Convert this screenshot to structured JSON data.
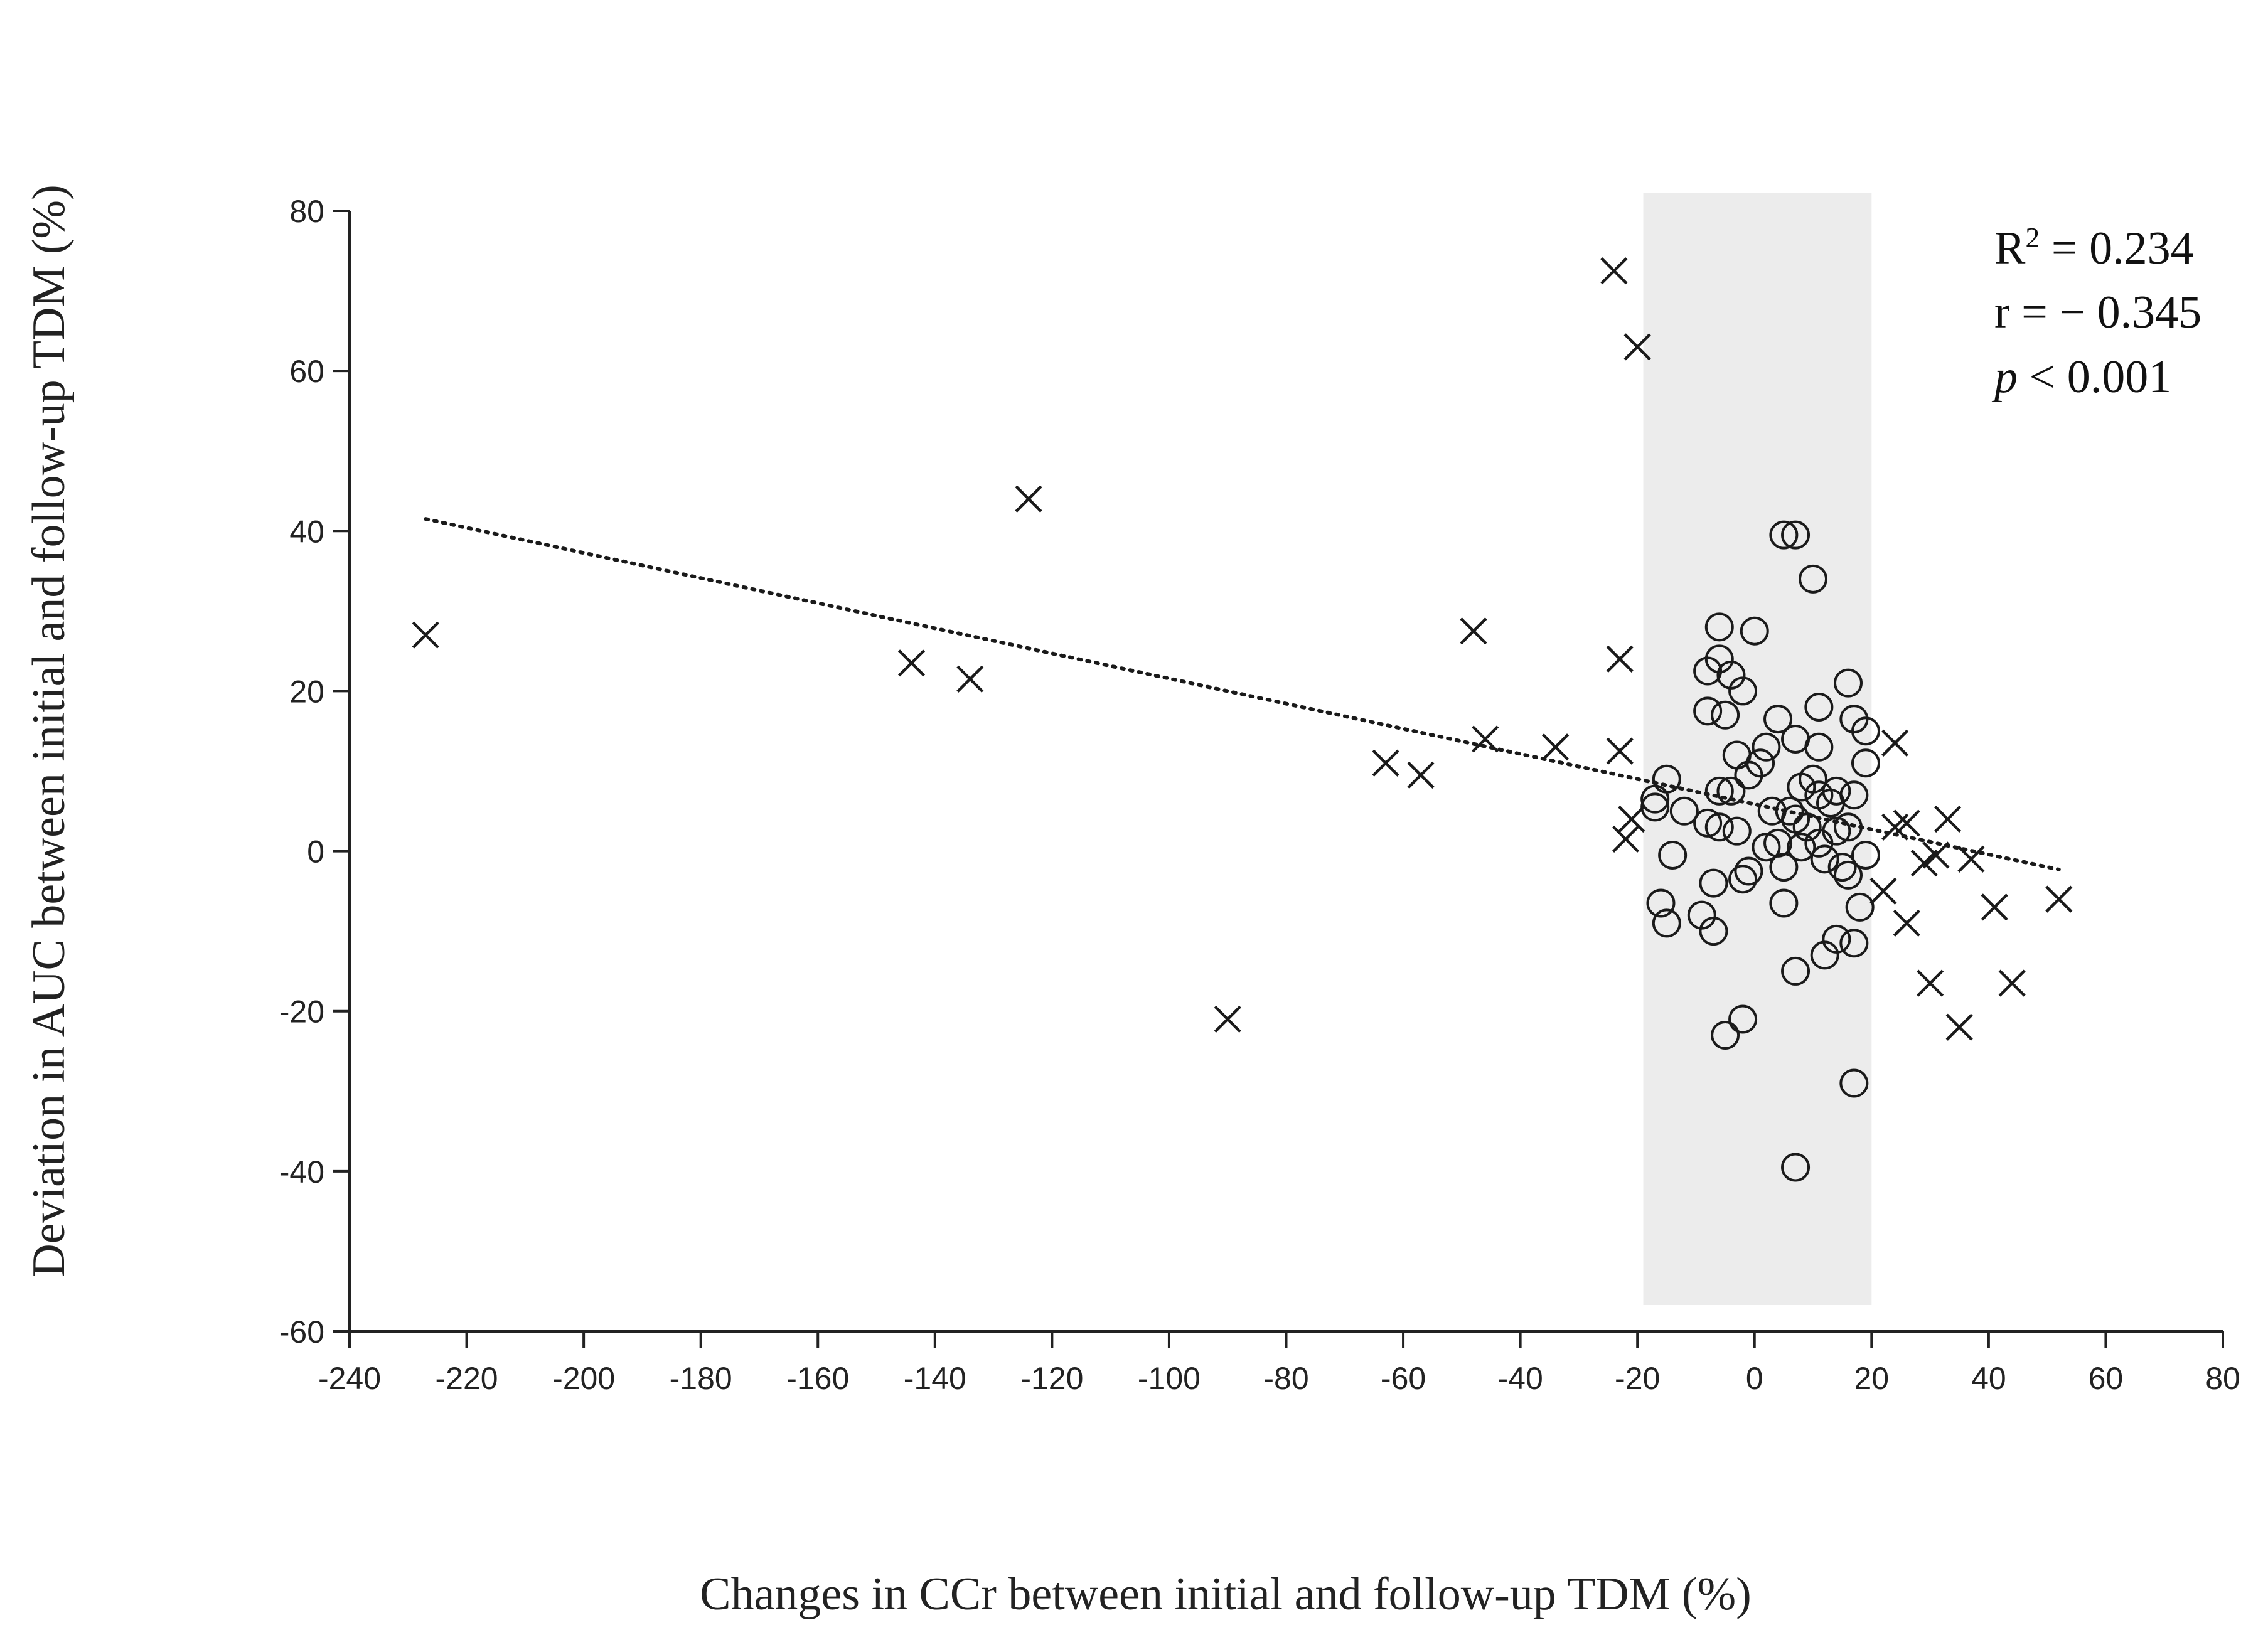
{
  "chart_data": {
    "type": "scatter",
    "title": "",
    "xlabel": "Changes in CCr between initial and follow-up TDM (%)",
    "ylabel": "Deviation in AUC between initial  and  follow-up TDM (%)",
    "xlim": [
      -240,
      80
    ],
    "ylim": [
      -60,
      80
    ],
    "x_ticks": [
      -240,
      -220,
      -200,
      -180,
      -160,
      -140,
      -120,
      -100,
      -80,
      -60,
      -40,
      -20,
      0,
      20,
      40,
      60,
      80
    ],
    "y_ticks": [
      -60,
      -40,
      -20,
      0,
      20,
      40,
      60,
      80
    ],
    "shaded_range_x": [
      -19,
      20
    ],
    "stats": {
      "r2_label": "R",
      "r2_sup": "2",
      "r2_value": " = 0.234",
      "r_text": "r =  − 0.345",
      "p_label": "p",
      "p_value": " < 0.001"
    },
    "trendline": {
      "style": "dotted",
      "x": [
        -227,
        52
      ],
      "y": [
        41.5,
        -2.3
      ]
    },
    "colors": {
      "marker": "#1a1a1a",
      "shade": "#ececec",
      "axis": "#222222"
    },
    "series": [
      {
        "name": "x-marker",
        "marker": "x",
        "points": [
          [
            -227,
            27
          ],
          [
            -144,
            23.5
          ],
          [
            -134,
            21.5
          ],
          [
            -124,
            44
          ],
          [
            -90,
            -21
          ],
          [
            -63,
            11
          ],
          [
            -57,
            9.5
          ],
          [
            -48,
            27.5
          ],
          [
            -46,
            14
          ],
          [
            -34,
            13
          ],
          [
            -24,
            72.5
          ],
          [
            -23,
            24
          ],
          [
            -23,
            12.5
          ],
          [
            -20,
            63
          ],
          [
            -21,
            4
          ],
          [
            -22,
            1.5
          ],
          [
            24,
            13.5
          ],
          [
            22,
            -5
          ],
          [
            24,
            3
          ],
          [
            26,
            3.5
          ],
          [
            26,
            -9
          ],
          [
            29,
            -1.5
          ],
          [
            30,
            -16.5
          ],
          [
            31,
            -0.5
          ],
          [
            33,
            4
          ],
          [
            35,
            -22
          ],
          [
            37,
            -1
          ],
          [
            41,
            -7
          ],
          [
            44,
            -16.5
          ],
          [
            52,
            -6
          ]
        ]
      },
      {
        "name": "circle-marker",
        "marker": "circle",
        "points": [
          [
            5,
            39.5
          ],
          [
            7,
            39.5
          ],
          [
            10,
            34
          ],
          [
            -6,
            28
          ],
          [
            0,
            27.5
          ],
          [
            -8,
            22.5
          ],
          [
            -6,
            24
          ],
          [
            -4,
            22
          ],
          [
            16,
            21
          ],
          [
            -2,
            20
          ],
          [
            -8,
            17.5
          ],
          [
            -5,
            17
          ],
          [
            4,
            16.5
          ],
          [
            11,
            18
          ],
          [
            17,
            16.5
          ],
          [
            19,
            15
          ],
          [
            7,
            14
          ],
          [
            11,
            13
          ],
          [
            2,
            13
          ],
          [
            -3,
            12
          ],
          [
            1,
            11
          ],
          [
            19,
            11
          ],
          [
            -1,
            9.5
          ],
          [
            10,
            9
          ],
          [
            -15,
            9
          ],
          [
            8,
            8
          ],
          [
            -6,
            7.5
          ],
          [
            14,
            7.5
          ],
          [
            17,
            7
          ],
          [
            11,
            7
          ],
          [
            -4,
            7.5
          ],
          [
            -17,
            6.5
          ],
          [
            -12,
            5
          ],
          [
            -17,
            5.5
          ],
          [
            13,
            6
          ],
          [
            6,
            5
          ],
          [
            3,
            5
          ],
          [
            7,
            4
          ],
          [
            -8,
            3.5
          ],
          [
            -6,
            3
          ],
          [
            -3,
            2.5
          ],
          [
            9,
            3
          ],
          [
            14,
            2.5
          ],
          [
            16,
            3
          ],
          [
            2,
            0.5
          ],
          [
            4,
            1
          ],
          [
            8,
            0.5
          ],
          [
            11,
            1
          ],
          [
            -14,
            -0.5
          ],
          [
            12,
            -1
          ],
          [
            15,
            -2
          ],
          [
            19,
            -0.5
          ],
          [
            5,
            -2
          ],
          [
            -1,
            -2.5
          ],
          [
            -2,
            -3.5
          ],
          [
            16,
            -3
          ],
          [
            -7,
            -4
          ],
          [
            5,
            -6.5
          ],
          [
            -16,
            -6.5
          ],
          [
            18,
            -7
          ],
          [
            -15,
            -9
          ],
          [
            -9,
            -8
          ],
          [
            -7,
            -10
          ],
          [
            14,
            -11
          ],
          [
            17,
            -11.5
          ],
          [
            12,
            -13
          ],
          [
            7,
            -15
          ],
          [
            -5,
            -23
          ],
          [
            -2,
            -21
          ],
          [
            17,
            -29
          ],
          [
            7,
            -39.5
          ]
        ]
      }
    ]
  }
}
